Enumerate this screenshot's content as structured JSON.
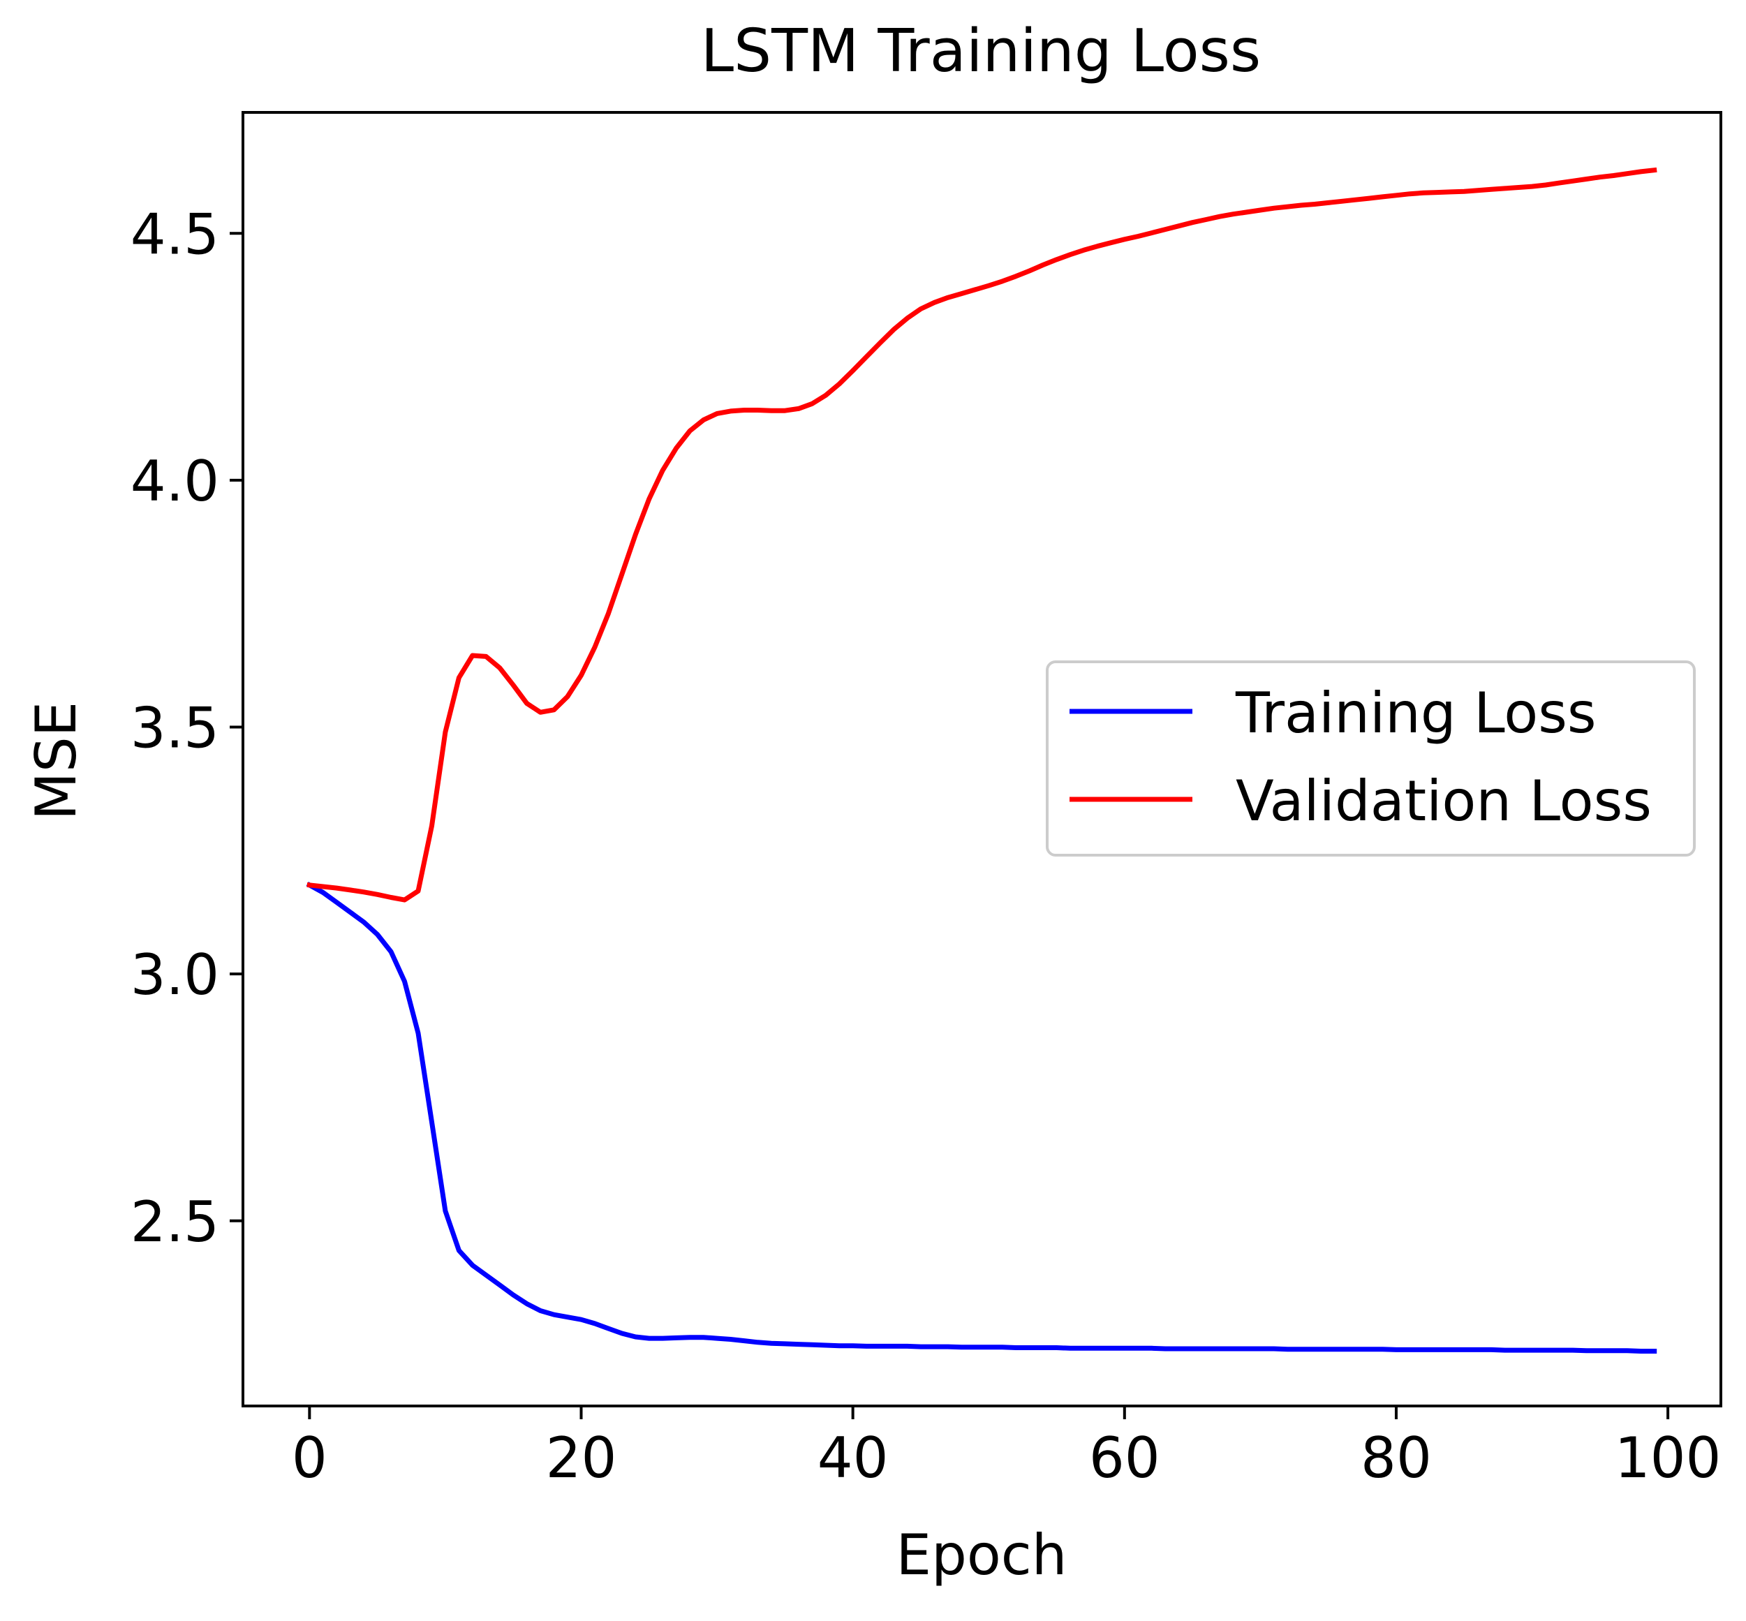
{
  "chart_data": {
    "type": "line",
    "title": "LSTM Training Loss",
    "xlabel": "Epoch",
    "ylabel": "MSE",
    "xlim": [
      -4.9,
      103.9
    ],
    "ylim": [
      2.125,
      4.745
    ],
    "xticks": [
      0,
      20,
      40,
      60,
      80,
      100
    ],
    "xtick_labels": [
      "0",
      "20",
      "40",
      "60",
      "80",
      "100"
    ],
    "yticks": [
      2.5,
      3.0,
      3.5,
      4.0,
      4.5
    ],
    "ytick_labels": [
      "2.5",
      "3.0",
      "3.5",
      "4.0",
      "4.5"
    ],
    "grid": false,
    "legend_position": "center-right",
    "x": [
      0,
      1,
      2,
      3,
      4,
      5,
      6,
      7,
      8,
      9,
      10,
      11,
      12,
      13,
      14,
      15,
      16,
      17,
      18,
      19,
      20,
      21,
      22,
      23,
      24,
      25,
      26,
      27,
      28,
      29,
      30,
      31,
      32,
      33,
      34,
      35,
      36,
      37,
      38,
      39,
      40,
      41,
      42,
      43,
      44,
      45,
      46,
      47,
      48,
      49,
      50,
      51,
      52,
      53,
      54,
      55,
      56,
      57,
      58,
      59,
      60,
      61,
      62,
      63,
      64,
      65,
      66,
      67,
      68,
      69,
      70,
      71,
      72,
      73,
      74,
      75,
      76,
      77,
      78,
      79,
      80,
      81,
      82,
      83,
      84,
      85,
      86,
      87,
      88,
      89,
      90,
      91,
      92,
      93,
      94,
      95,
      96,
      97,
      98,
      99
    ],
    "series": [
      {
        "name": "Training Loss",
        "color": "#0000ff",
        "values": [
          3.18,
          3.165,
          3.145,
          3.125,
          3.105,
          3.08,
          3.045,
          2.985,
          2.88,
          2.7,
          2.52,
          2.44,
          2.41,
          2.39,
          2.37,
          2.35,
          2.332,
          2.318,
          2.31,
          2.305,
          2.3,
          2.292,
          2.282,
          2.272,
          2.265,
          2.262,
          2.262,
          2.263,
          2.264,
          2.264,
          2.262,
          2.26,
          2.257,
          2.254,
          2.252,
          2.251,
          2.25,
          2.249,
          2.248,
          2.247,
          2.247,
          2.246,
          2.246,
          2.246,
          2.246,
          2.245,
          2.245,
          2.245,
          2.244,
          2.244,
          2.244,
          2.244,
          2.243,
          2.243,
          2.243,
          2.243,
          2.242,
          2.242,
          2.242,
          2.242,
          2.242,
          2.242,
          2.242,
          2.241,
          2.241,
          2.241,
          2.241,
          2.241,
          2.241,
          2.241,
          2.241,
          2.241,
          2.24,
          2.24,
          2.24,
          2.24,
          2.24,
          2.24,
          2.24,
          2.24,
          2.239,
          2.239,
          2.239,
          2.239,
          2.239,
          2.239,
          2.239,
          2.239,
          2.238,
          2.238,
          2.238,
          2.238,
          2.238,
          2.238,
          2.237,
          2.237,
          2.237,
          2.237,
          2.236,
          2.236
        ]
      },
      {
        "name": "Validation Loss",
        "color": "#ff0000",
        "values": [
          3.18,
          3.177,
          3.174,
          3.17,
          3.166,
          3.161,
          3.155,
          3.15,
          3.168,
          3.3,
          3.49,
          3.6,
          3.645,
          3.643,
          3.62,
          3.585,
          3.548,
          3.53,
          3.535,
          3.562,
          3.605,
          3.662,
          3.73,
          3.81,
          3.89,
          3.962,
          4.02,
          4.065,
          4.1,
          4.122,
          4.135,
          4.14,
          4.142,
          4.142,
          4.141,
          4.141,
          4.145,
          4.155,
          4.172,
          4.195,
          4.222,
          4.25,
          4.278,
          4.305,
          4.328,
          4.347,
          4.36,
          4.37,
          4.378,
          4.386,
          4.394,
          4.403,
          4.413,
          4.424,
          4.436,
          4.447,
          4.457,
          4.466,
          4.474,
          4.481,
          4.488,
          4.494,
          4.501,
          4.508,
          4.515,
          4.522,
          4.528,
          4.534,
          4.539,
          4.543,
          4.547,
          4.551,
          4.554,
          4.557,
          4.559,
          4.562,
          4.565,
          4.568,
          4.571,
          4.574,
          4.577,
          4.58,
          4.582,
          4.583,
          4.584,
          4.585,
          4.587,
          4.589,
          4.591,
          4.593,
          4.595,
          4.598,
          4.602,
          4.606,
          4.61,
          4.614,
          4.617,
          4.621,
          4.625,
          4.628
        ]
      }
    ]
  }
}
